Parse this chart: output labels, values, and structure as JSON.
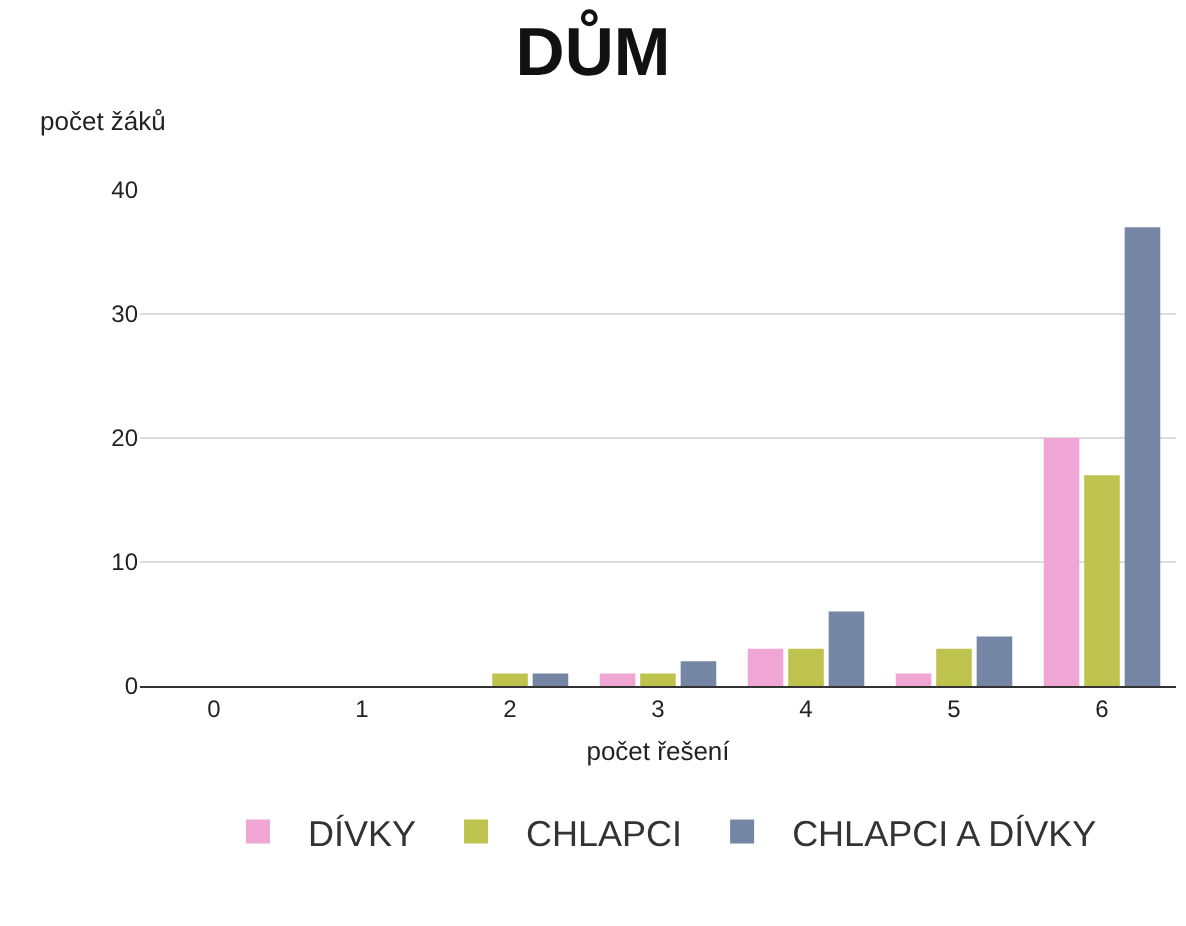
{
  "chart_data": {
    "type": "bar",
    "title": "DŮM",
    "xlabel": "počet řešení",
    "ylabel": "počet žáků",
    "categories": [
      "0",
      "1",
      "2",
      "3",
      "4",
      "5",
      "6"
    ],
    "series": [
      {
        "name": "DÍVKY",
        "color": "#f0a6d4",
        "values": [
          0,
          0,
          0,
          1,
          3,
          1,
          20
        ]
      },
      {
        "name": "CHLAPCI",
        "color": "#bec34e",
        "values": [
          0,
          0,
          1,
          1,
          3,
          3,
          17
        ]
      },
      {
        "name": "CHLAPCI A DÍVKY",
        "color": "#7486a3",
        "values": [
          0,
          0,
          1,
          2,
          6,
          4,
          37
        ]
      }
    ],
    "ylim": [
      0,
      40
    ],
    "yticks": [
      0,
      10,
      20,
      30,
      40
    ],
    "grid": "y",
    "legend": "bottom"
  }
}
